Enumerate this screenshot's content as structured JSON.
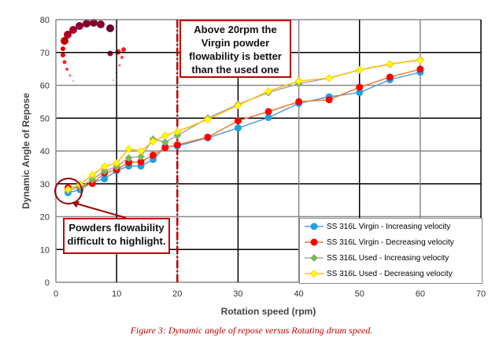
{
  "chart_data": {
    "type": "line",
    "xlabel": "Rotation speed (rpm)",
    "ylabel": "Dynamic Angle of Repose",
    "xlim": [
      0,
      70
    ],
    "ylim": [
      0,
      80
    ],
    "xticks": [
      "0",
      "10",
      "20",
      "30",
      "40",
      "50",
      "60",
      "70"
    ],
    "yticks": [
      "0",
      "10",
      "20",
      "30",
      "40",
      "50",
      "60",
      "70",
      "80"
    ],
    "grid": true,
    "legend_position": "bottom-right",
    "x": [
      2,
      4,
      6,
      8,
      10,
      12,
      14,
      16,
      18,
      20,
      25,
      30,
      35,
      40,
      45,
      50,
      55,
      60
    ],
    "series": [
      {
        "name": "SS 316L Virgin - Increasing velocity",
        "color": "#1fa2e0",
        "marker": "circle",
        "line_color": "#5b9bd5",
        "values": [
          27.3,
          28.2,
          30.5,
          31.5,
          34,
          35.4,
          35.4,
          37.4,
          41.3,
          41.5,
          44,
          47,
          50.2,
          54.5,
          56.5,
          57.8,
          61.7,
          64
        ]
      },
      {
        "name": "SS 316L Virgin - Decreasing velocity",
        "color": "#ff0000",
        "marker": "circle",
        "line_color": "#ed7d31",
        "values": [
          28.8,
          29.1,
          30.1,
          33.3,
          34.3,
          36.5,
          36.7,
          38.7,
          41,
          41.9,
          44.2,
          49.2,
          52,
          55,
          55.6,
          59.4,
          62.5,
          64.9
        ]
      },
      {
        "name": "SS 316L Used - Increasing velocity",
        "color": "#70c040",
        "marker": "diamond",
        "line_color": "#a5a5a5",
        "values": [
          28,
          29,
          31.3,
          33.9,
          35.2,
          37.9,
          38.3,
          43.6,
          42.7,
          44.7,
          50,
          54.2,
          57.8,
          60.5,
          62.2,
          64.7,
          66.4,
          67.8
        ]
      },
      {
        "name": "SS 316L Used - Decreasing velocity",
        "color": "#ffff00",
        "marker": "diamond",
        "line_color": "#ffc000",
        "values": [
          28.3,
          29.8,
          32.7,
          35.3,
          36.3,
          40.6,
          40,
          42.9,
          44.7,
          45.9,
          49.6,
          53.9,
          58.2,
          61.3,
          62.2,
          64.7,
          66.5,
          67.7
        ]
      }
    ],
    "reference_line": {
      "x": 20,
      "color": "#c00000",
      "style": "dashed"
    },
    "annotations": [
      "Above 20rpm the Virgin powder flowability is better than the used one",
      "Powders flowability difficult to highlight."
    ]
  },
  "caption": "Figure 3: Dynamic angle of repose versus Rotating drum speed."
}
